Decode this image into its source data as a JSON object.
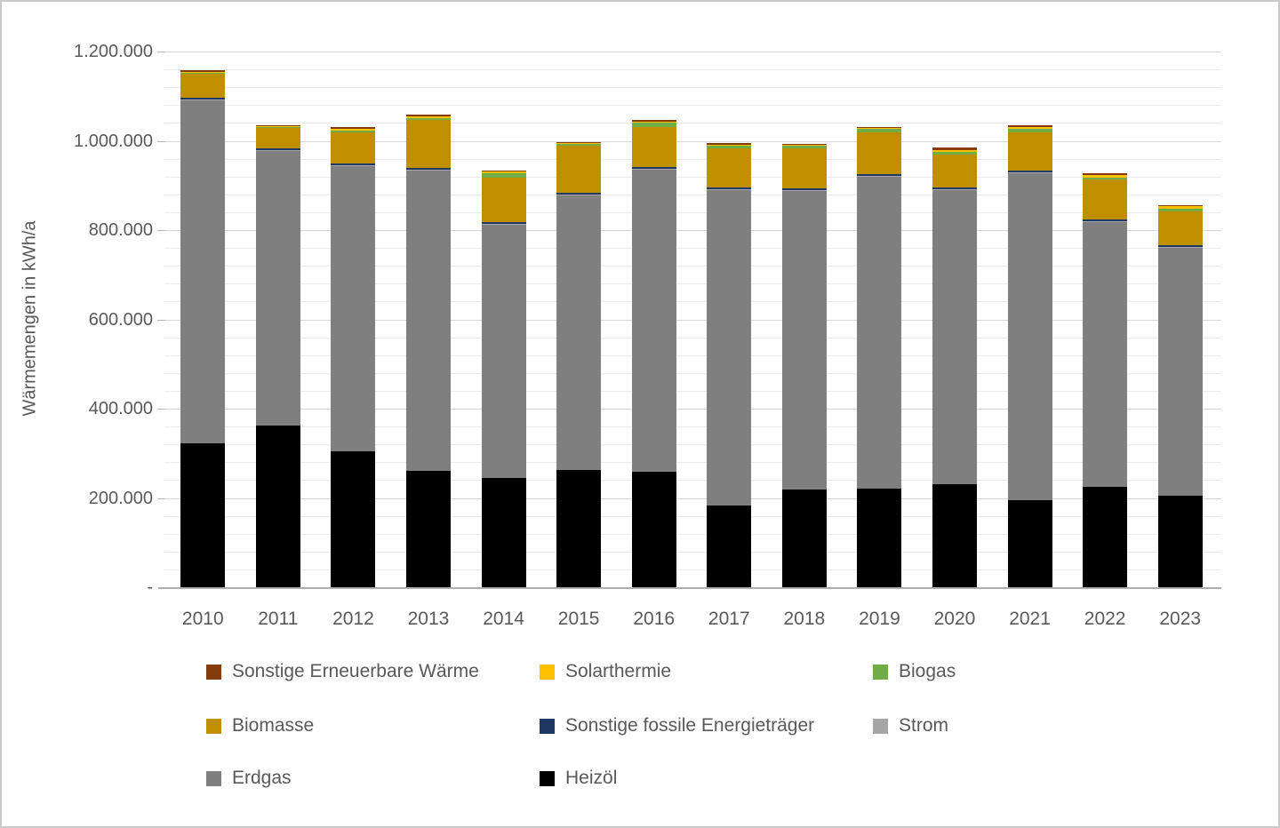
{
  "chart_data": {
    "type": "bar",
    "stacked": true,
    "title": "",
    "ylabel": "Wärmemengen in kWh/a",
    "xlabel": "",
    "ylim": [
      0,
      1200000
    ],
    "y_major_unit": 200000,
    "y_minor_unit": 40000,
    "grid": true,
    "y_ticks": [
      {
        "label": "1.200.000",
        "value": 1200000
      },
      {
        "label": "1.000.000",
        "value": 1000000
      },
      {
        "label": "800.000",
        "value": 800000
      },
      {
        "label": "600.000",
        "value": 600000
      },
      {
        "label": "400.000",
        "value": 400000
      },
      {
        "label": "200.000",
        "value": 200000
      },
      {
        "label": "-",
        "value": 0
      }
    ],
    "categories": [
      "2010",
      "2011",
      "2012",
      "2013",
      "2014",
      "2015",
      "2016",
      "2017",
      "2018",
      "2019",
      "2020",
      "2021",
      "2022",
      "2023"
    ],
    "series": [
      {
        "name": "Heizöl",
        "color": "#000000",
        "values": [
          322000,
          363000,
          304000,
          261000,
          244000,
          263000,
          259000,
          183000,
          219000,
          221000,
          230000,
          196000,
          224000,
          204000
        ]
      },
      {
        "name": "Erdgas",
        "color": "#7f7f7f",
        "values": [
          769000,
          616000,
          640000,
          674000,
          568000,
          615000,
          677000,
          708000,
          670000,
          700000,
          660000,
          732000,
          595000,
          558000
        ]
      },
      {
        "name": "Strom",
        "color": "#a6a6a6",
        "values": [
          1000,
          1000,
          1000,
          1000,
          1000,
          1000,
          1000,
          1000,
          1000,
          1000,
          1000,
          1000,
          1000,
          1000
        ]
      },
      {
        "name": "Sonstige fossile Energieträger",
        "color": "#1f3864",
        "values": [
          4000,
          4000,
          4000,
          4000,
          4000,
          4000,
          4000,
          4000,
          4000,
          4000,
          4000,
          4000,
          4000,
          4000
        ]
      },
      {
        "name": "Biomasse",
        "color": "#bf8f00",
        "values": [
          55000,
          45000,
          69000,
          106000,
          101000,
          106000,
          90000,
          88000,
          90000,
          92000,
          74000,
          86000,
          89000,
          74000
        ]
      },
      {
        "name": "Biogas",
        "color": "#70ad47",
        "values": [
          2000,
          2000,
          5000,
          5000,
          10000,
          5000,
          9000,
          5000,
          5000,
          8000,
          7000,
          7000,
          5000,
          7000
        ]
      },
      {
        "name": "Solarthermie",
        "color": "#ffc000",
        "values": [
          2000,
          2000,
          3000,
          3000,
          3000,
          2000,
          3000,
          2000,
          2000,
          2000,
          4000,
          4000,
          5000,
          5000
        ]
      },
      {
        "name": "Sonstige Erneuerbare Wärme",
        "color": "#843c0c",
        "values": [
          4000,
          2000,
          4000,
          4000,
          2000,
          2000,
          3000,
          4000,
          2000,
          2000,
          5000,
          4000,
          4000,
          3000
        ]
      }
    ],
    "legend": {
      "position": "bottom",
      "rows": [
        [
          {
            "label": "Sonstige Erneuerbare Wärme",
            "color": "#843c0c"
          },
          {
            "label": "Solarthermie",
            "color": "#ffc000"
          },
          {
            "label": "Biogas",
            "color": "#70ad47"
          }
        ],
        [
          {
            "label": "Biomasse",
            "color": "#bf8f00"
          },
          {
            "label": "Sonstige fossile Energieträger",
            "color": "#1f3864"
          },
          {
            "label": "Strom",
            "color": "#a6a6a6"
          }
        ],
        [
          {
            "label": "Erdgas",
            "color": "#7f7f7f"
          },
          {
            "label": "Heizöl",
            "color": "#000000"
          }
        ]
      ]
    }
  }
}
